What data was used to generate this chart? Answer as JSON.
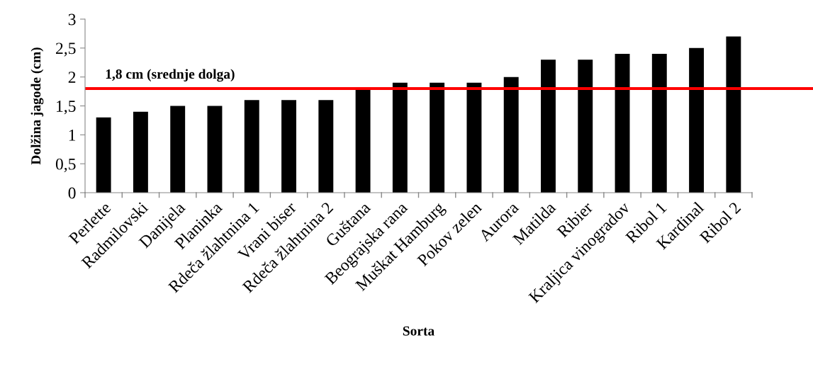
{
  "chart_data": {
    "type": "bar",
    "xlabel": "Sorta",
    "ylabel": "Dolžina jagode (cm)",
    "categories": [
      "Perlette",
      "Radmilovski",
      "Danijela",
      "Planinka",
      "Rdeča žlahtnina 1",
      "Vrani biser",
      "Rdeča žlahtnina 2",
      "Guštana",
      "Beograjska rana",
      "Muškat Hamburg",
      "Pokov zelen",
      "Aurora",
      "Matilda",
      "Ribier",
      "Kraljica vinogradov",
      "Ribol 1",
      "Kardinal",
      "Ribol 2"
    ],
    "values": [
      1.3,
      1.4,
      1.5,
      1.5,
      1.6,
      1.6,
      1.6,
      1.8,
      1.9,
      1.9,
      1.9,
      2.0,
      2.3,
      2.3,
      2.4,
      2.4,
      2.5,
      2.7
    ],
    "color": "#000000",
    "ylim": [
      0,
      3
    ],
    "yticks": [
      0,
      {
        "value": 0.5,
        "label": "0,5"
      },
      1,
      {
        "value": 1.5,
        "label": "1,5"
      },
      2,
      {
        "value": 2.5,
        "label": "2,5"
      },
      3
    ],
    "ref_lines": [
      {
        "axis": "y",
        "value": 1.8,
        "label": "1,8 cm (srednje dolga)",
        "color": "#ff0000"
      }
    ],
    "grid": false
  }
}
